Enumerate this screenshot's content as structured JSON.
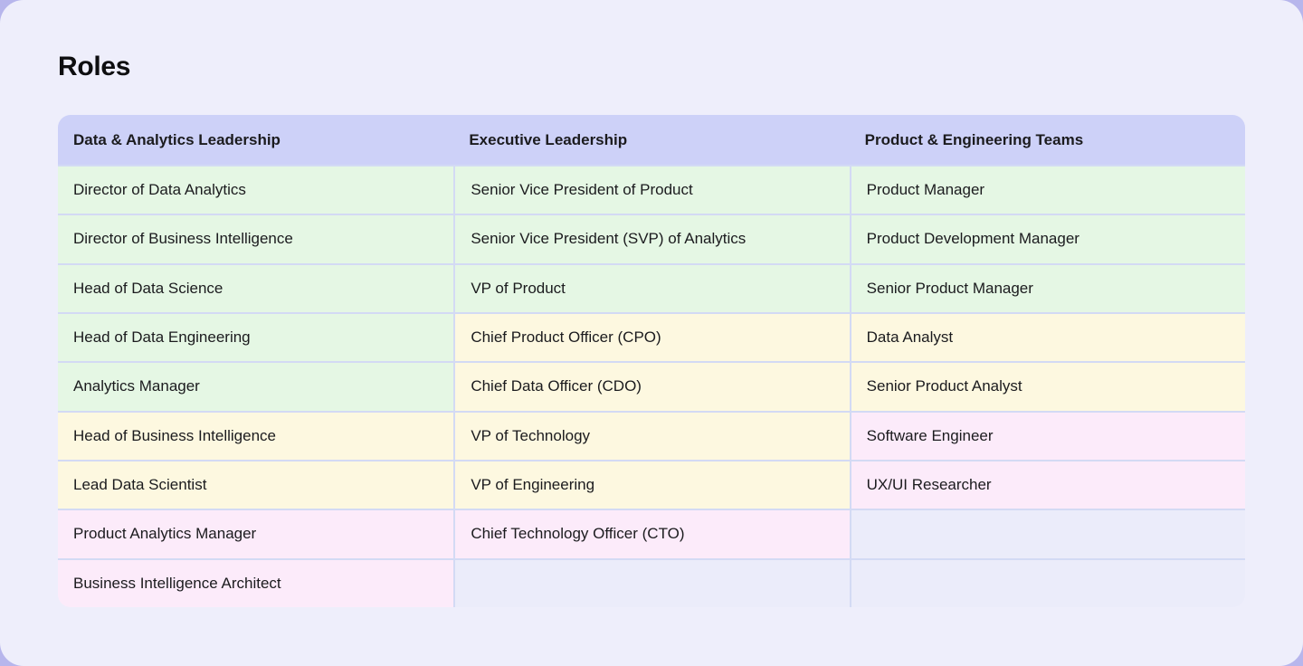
{
  "page": {
    "title": "Roles"
  },
  "colors": {
    "outer_bg": "#b7b6ec",
    "page_bg": "#eeeefb",
    "header_bg": "#cdd1f8",
    "border": "#d3daf4",
    "text": "#1b1b1e",
    "title": "#0e0e10",
    "tones": {
      "green": "#e5f7e4",
      "yellow": "#fdf8e0",
      "pink": "#fcebfa",
      "empty": "#ebecfa"
    }
  },
  "table": {
    "headers": [
      "Data & Analytics Leadership",
      "Executive Leadership",
      "Product & Engineering Teams"
    ],
    "rows": [
      {
        "cells": [
          {
            "text": "Director of Data Analytics",
            "tone": "green"
          },
          {
            "text": "Senior Vice President of Product",
            "tone": "green"
          },
          {
            "text": "Product Manager",
            "tone": "green"
          }
        ]
      },
      {
        "cells": [
          {
            "text": "Director of Business Intelligence",
            "tone": "green"
          },
          {
            "text": "Senior Vice President (SVP) of Analytics",
            "tone": "green"
          },
          {
            "text": "Product Development Manager",
            "tone": "green"
          }
        ]
      },
      {
        "cells": [
          {
            "text": "Head of Data Science",
            "tone": "green"
          },
          {
            "text": "VP of Product",
            "tone": "green"
          },
          {
            "text": "Senior Product Manager",
            "tone": "green"
          }
        ]
      },
      {
        "cells": [
          {
            "text": "Head of Data Engineering",
            "tone": "green"
          },
          {
            "text": "Chief Product Officer (CPO)",
            "tone": "yellow"
          },
          {
            "text": "Data Analyst",
            "tone": "yellow"
          }
        ]
      },
      {
        "cells": [
          {
            "text": "Analytics Manager",
            "tone": "green"
          },
          {
            "text": "Chief Data Officer (CDO)",
            "tone": "yellow"
          },
          {
            "text": "Senior Product Analyst",
            "tone": "yellow"
          }
        ]
      },
      {
        "cells": [
          {
            "text": "Head of Business Intelligence",
            "tone": "yellow"
          },
          {
            "text": "VP of Technology",
            "tone": "yellow"
          },
          {
            "text": "Software Engineer",
            "tone": "pink"
          }
        ]
      },
      {
        "cells": [
          {
            "text": "Lead Data Scientist",
            "tone": "yellow"
          },
          {
            "text": "VP of Engineering",
            "tone": "yellow"
          },
          {
            "text": "UX/UI Researcher",
            "tone": "pink"
          }
        ]
      },
      {
        "cells": [
          {
            "text": "Product Analytics Manager",
            "tone": "pink"
          },
          {
            "text": "Chief Technology Officer (CTO)",
            "tone": "pink"
          },
          {
            "text": "",
            "tone": "empty"
          }
        ]
      },
      {
        "cells": [
          {
            "text": "Business Intelligence Architect",
            "tone": "pink"
          },
          {
            "text": "",
            "tone": "empty"
          },
          {
            "text": "",
            "tone": "empty"
          }
        ]
      }
    ]
  }
}
